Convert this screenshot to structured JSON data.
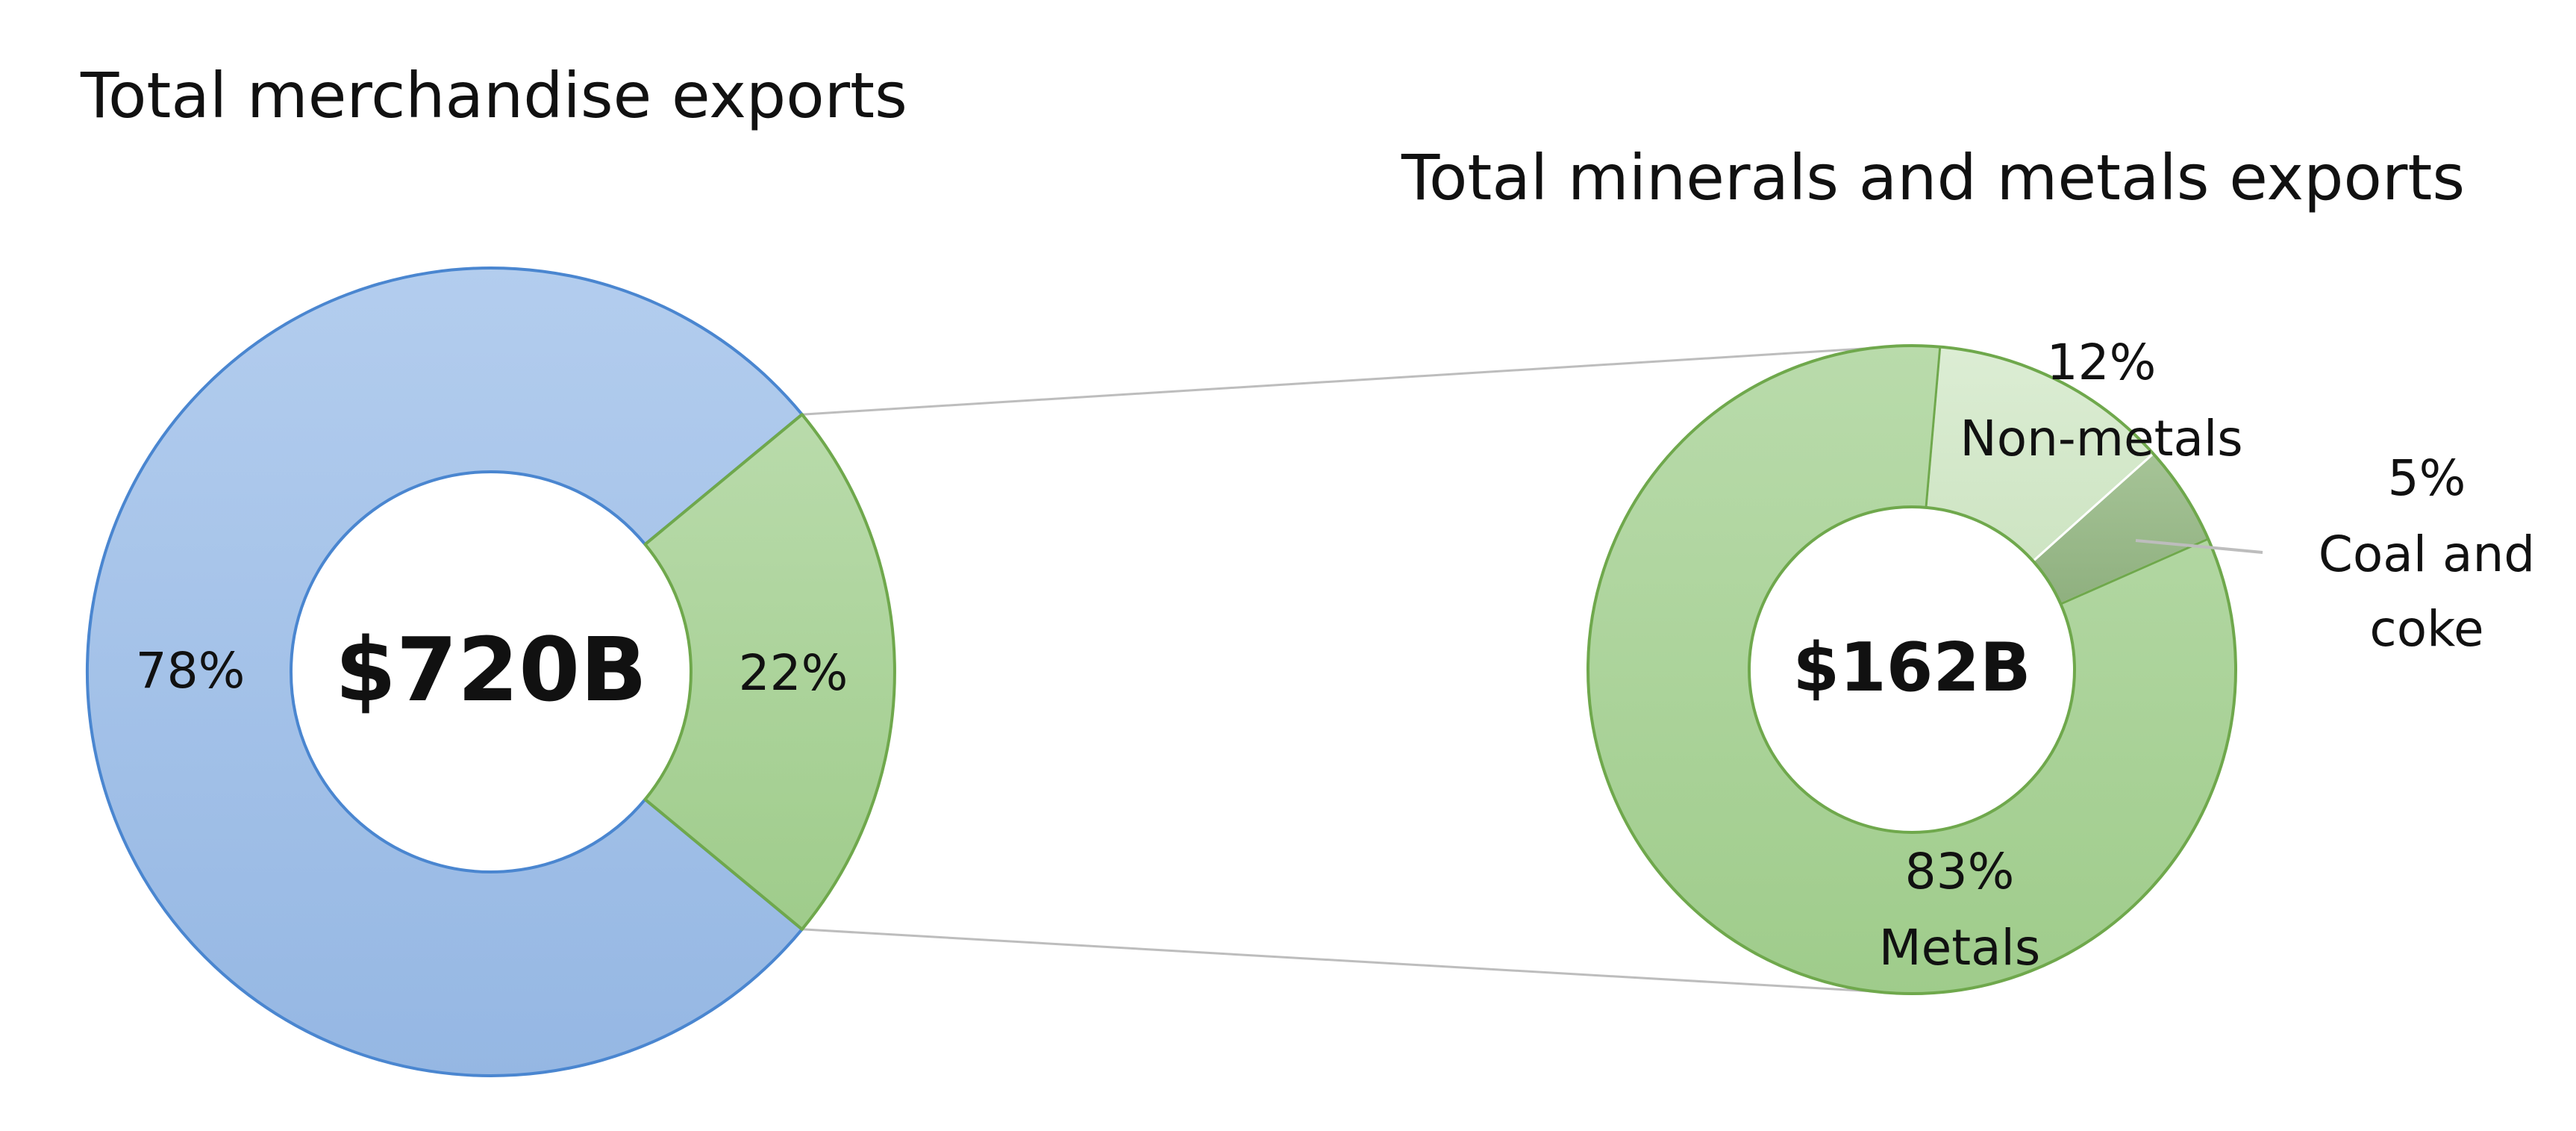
{
  "colors": {
    "merch_other": "#a2c0e7",
    "merch_other_stroke": "#4a86d0",
    "merch_minerals": "#abd39a",
    "minerals_stroke": "#6fa84c",
    "metals": "#abd39a",
    "non_metals": "#d5e9cc",
    "coal_coke": "#9ab98c",
    "connector": "#bdbdbd"
  },
  "chart_data": [
    {
      "type": "pie",
      "donut": true,
      "title": "Total merchandise exports",
      "center_label": "$720B",
      "slices": [
        {
          "label": "78%",
          "value": 78,
          "color_key": "merch_other"
        },
        {
          "label": "22%",
          "value": 22,
          "color_key": "merch_minerals"
        }
      ]
    },
    {
      "type": "pie",
      "donut": true,
      "title": "Total minerals and metals exports",
      "center_label": "$162B",
      "slices": [
        {
          "name": "Non-metals",
          "label": "12%",
          "value": 12,
          "color_key": "non_metals"
        },
        {
          "name": "Coal and coke",
          "label": "5%",
          "value": 5,
          "color_key": "coal_coke"
        },
        {
          "name": "Metals",
          "label": "83%",
          "value": 83,
          "color_key": "metals"
        }
      ]
    }
  ]
}
